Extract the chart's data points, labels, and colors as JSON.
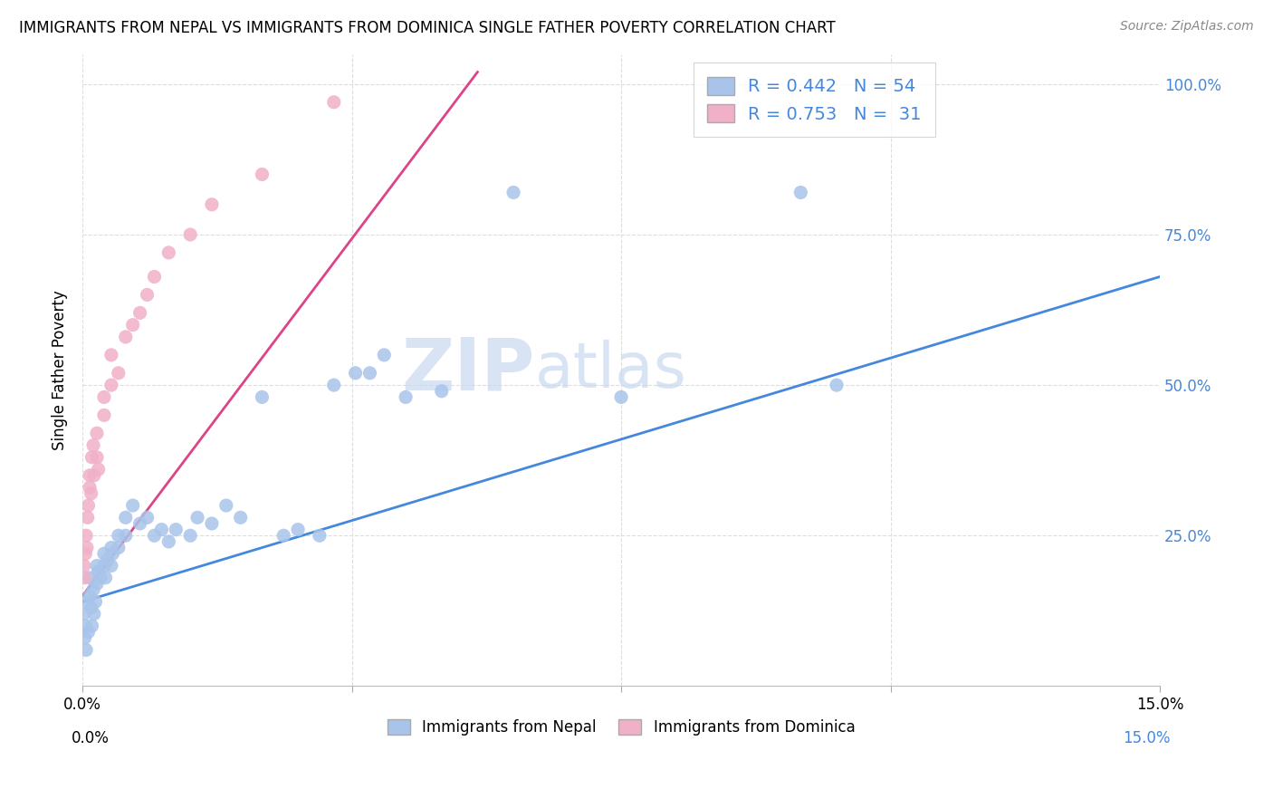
{
  "title": "IMMIGRANTS FROM NEPAL VS IMMIGRANTS FROM DOMINICA SINGLE FATHER POVERTY CORRELATION CHART",
  "source": "Source: ZipAtlas.com",
  "ylabel": "Single Father Poverty",
  "nepal_color": "#a8c4ea",
  "dominica_color": "#f0b0c8",
  "nepal_line_color": "#4488dd",
  "dominica_line_color": "#dd4488",
  "watermark_zip": "ZIP",
  "watermark_atlas": "atlas",
  "watermark_color_zip": "#c8d8f0",
  "watermark_color_atlas": "#c8d8f0",
  "background_color": "#ffffff",
  "grid_color": "#dddddd",
  "xlim": [
    0.0,
    0.15
  ],
  "ylim": [
    0.0,
    1.05
  ],
  "nepal_trend_x": [
    0.0,
    0.15
  ],
  "nepal_trend_y": [
    0.14,
    0.68
  ],
  "dominica_trend_x": [
    0.0,
    0.055
  ],
  "dominica_trend_y": [
    0.15,
    1.02
  ],
  "nepal_scatter_x": [
    0.0002,
    0.0003,
    0.0004,
    0.0005,
    0.0006,
    0.0008,
    0.001,
    0.001,
    0.0012,
    0.0013,
    0.0015,
    0.0016,
    0.0018,
    0.002,
    0.002,
    0.0022,
    0.0025,
    0.003,
    0.003,
    0.0032,
    0.0035,
    0.004,
    0.004,
    0.0042,
    0.005,
    0.005,
    0.006,
    0.006,
    0.007,
    0.008,
    0.009,
    0.01,
    0.011,
    0.012,
    0.013,
    0.015,
    0.016,
    0.018,
    0.02,
    0.022,
    0.025,
    0.028,
    0.03,
    0.033,
    0.035,
    0.038,
    0.04,
    0.042,
    0.045,
    0.05,
    0.06,
    0.075,
    0.1,
    0.105
  ],
  "nepal_scatter_y": [
    0.12,
    0.08,
    0.1,
    0.06,
    0.14,
    0.09,
    0.18,
    0.15,
    0.13,
    0.1,
    0.16,
    0.12,
    0.14,
    0.2,
    0.17,
    0.19,
    0.18,
    0.22,
    0.2,
    0.18,
    0.21,
    0.23,
    0.2,
    0.22,
    0.25,
    0.23,
    0.28,
    0.25,
    0.3,
    0.27,
    0.28,
    0.25,
    0.26,
    0.24,
    0.26,
    0.25,
    0.28,
    0.27,
    0.3,
    0.28,
    0.48,
    0.25,
    0.26,
    0.25,
    0.5,
    0.52,
    0.52,
    0.55,
    0.48,
    0.49,
    0.82,
    0.48,
    0.82,
    0.5
  ],
  "dominica_scatter_x": [
    0.0002,
    0.0003,
    0.0004,
    0.0005,
    0.0006,
    0.0007,
    0.0008,
    0.001,
    0.001,
    0.0012,
    0.0013,
    0.0015,
    0.0016,
    0.002,
    0.002,
    0.0022,
    0.003,
    0.003,
    0.004,
    0.004,
    0.005,
    0.006,
    0.007,
    0.008,
    0.009,
    0.01,
    0.012,
    0.015,
    0.018,
    0.025,
    0.035
  ],
  "dominica_scatter_y": [
    0.2,
    0.18,
    0.22,
    0.25,
    0.23,
    0.28,
    0.3,
    0.33,
    0.35,
    0.32,
    0.38,
    0.4,
    0.35,
    0.42,
    0.38,
    0.36,
    0.45,
    0.48,
    0.5,
    0.55,
    0.52,
    0.58,
    0.6,
    0.62,
    0.65,
    0.68,
    0.72,
    0.75,
    0.8,
    0.85,
    0.97
  ],
  "nepal_legend_label": "R = 0.442   N = 54",
  "dominica_legend_label": "R = 0.753   N =  31"
}
